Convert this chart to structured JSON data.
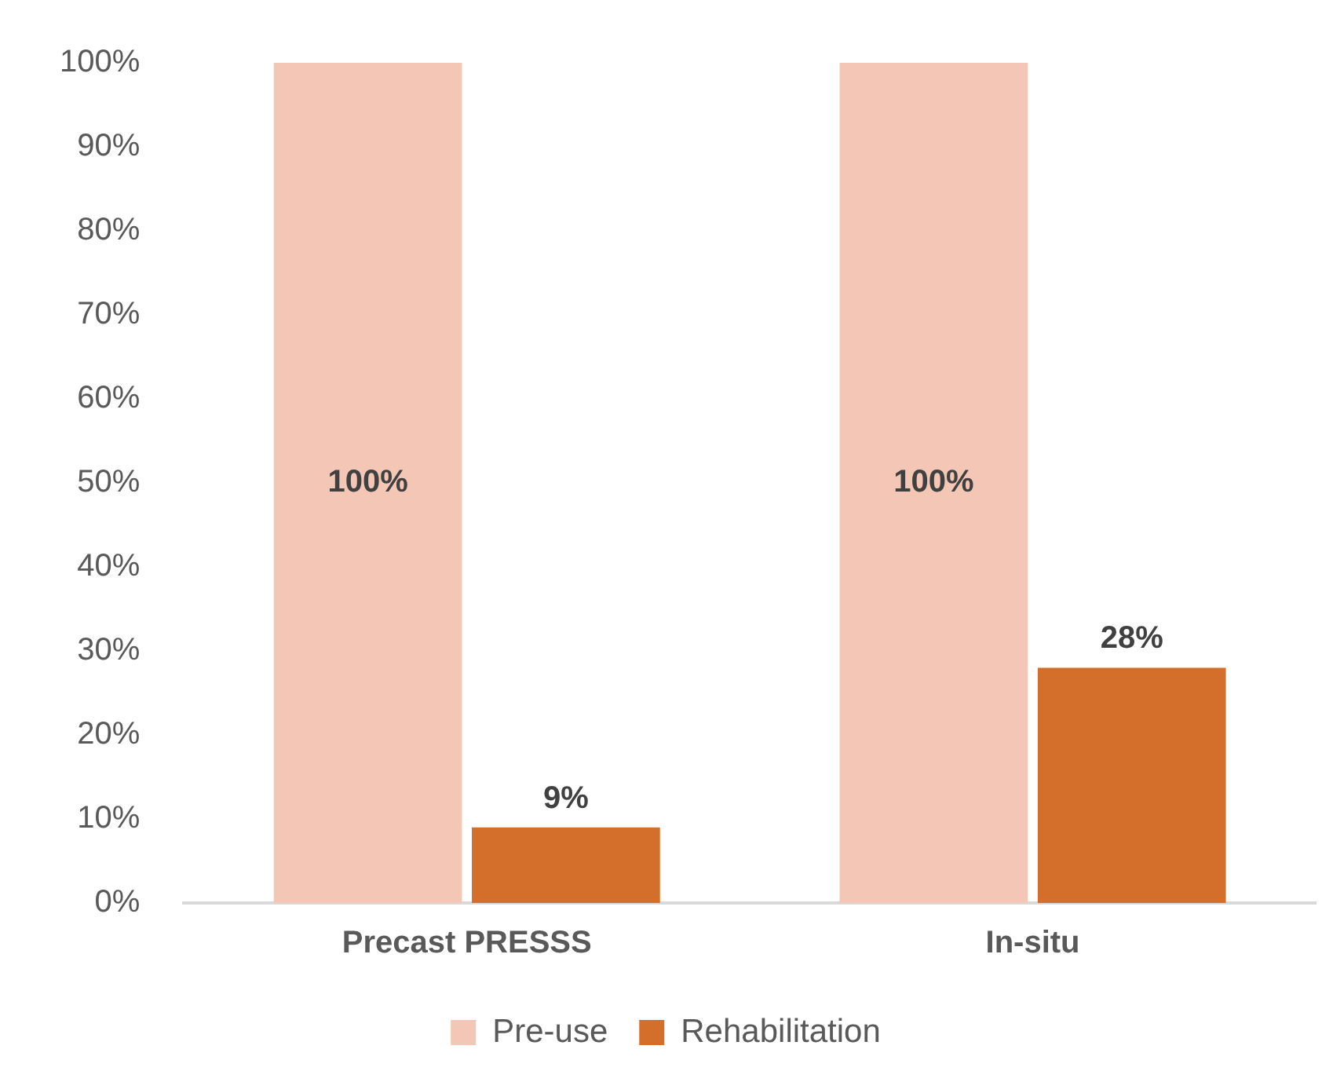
{
  "chart_data": {
    "type": "bar",
    "categories": [
      "Precast PRESSS",
      "In-situ"
    ],
    "series": [
      {
        "name": "Pre-use",
        "color": "#f4c6b6",
        "values": [
          100,
          100
        ],
        "value_labels": [
          "100%",
          "100%"
        ]
      },
      {
        "name": "Rehabilitation",
        "color": "#d46e2b",
        "values": [
          9,
          28
        ],
        "value_labels": [
          "9%",
          "28%"
        ]
      }
    ],
    "ylim": [
      0,
      100
    ],
    "yticks": [
      {
        "value": 0,
        "label": "0%"
      },
      {
        "value": 10,
        "label": "10%"
      },
      {
        "value": 20,
        "label": "20%"
      },
      {
        "value": 30,
        "label": "30%"
      },
      {
        "value": 40,
        "label": "40%"
      },
      {
        "value": 50,
        "label": "50%"
      },
      {
        "value": 60,
        "label": "60%"
      },
      {
        "value": 70,
        "label": "70%"
      },
      {
        "value": 80,
        "label": "80%"
      },
      {
        "value": 90,
        "label": "90%"
      },
      {
        "value": 100,
        "label": "100%"
      }
    ],
    "grid": false,
    "legend": "bottom"
  }
}
